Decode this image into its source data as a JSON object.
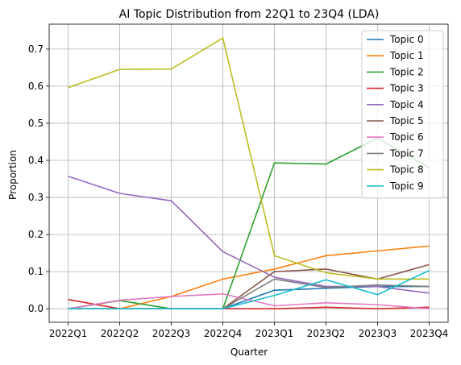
{
  "chart_data": {
    "type": "line",
    "title": "AI Topic Distribution from 22Q1 to 23Q4 (LDA)",
    "xlabel": "Quarter",
    "ylabel": "Proportion",
    "categories": [
      "2022Q1",
      "2022Q2",
      "2022Q3",
      "2022Q4",
      "2023Q1",
      "2023Q2",
      "2023Q3",
      "2023Q4"
    ],
    "ylim": [
      -0.0365,
      0.767
    ],
    "yticks": [
      "0.0",
      "0.1",
      "0.2",
      "0.3",
      "0.4",
      "0.5",
      "0.6",
      "0.7"
    ],
    "grid": true,
    "legend_position": "upper-right",
    "series": [
      {
        "name": "Topic 0",
        "color": "#1f77b4",
        "values": [
          0.0,
          0.0,
          0.0,
          0.0,
          0.05,
          0.055,
          0.06,
          0.06
        ]
      },
      {
        "name": "Topic 1",
        "color": "#ff7f0e",
        "values": [
          0.0,
          0.0,
          0.033,
          0.08,
          0.107,
          0.143,
          0.156,
          0.169
        ]
      },
      {
        "name": "Topic 2",
        "color": "#2ca02c",
        "values": [
          0.0,
          0.022,
          0.0,
          0.0,
          0.393,
          0.39,
          0.46,
          0.38
        ]
      },
      {
        "name": "Topic 3",
        "color": "#d62728",
        "values": [
          0.025,
          0.0,
          0.0,
          0.0,
          0.0,
          0.004,
          0.0,
          0.004
        ]
      },
      {
        "name": "Topic 4",
        "color": "#9467bd",
        "values": [
          0.357,
          0.311,
          0.291,
          0.154,
          0.085,
          0.06,
          0.06,
          0.042
        ]
      },
      {
        "name": "Topic 5",
        "color": "#8c564b",
        "values": [
          0.0,
          0.0,
          0.0,
          0.0,
          0.1,
          0.107,
          0.08,
          0.119
        ]
      },
      {
        "name": "Topic 6",
        "color": "#e377c2",
        "values": [
          0.0,
          0.023,
          0.033,
          0.04,
          0.008,
          0.016,
          0.011,
          0.0
        ]
      },
      {
        "name": "Topic 7",
        "color": "#7f7f7f",
        "values": [
          0.0,
          0.0,
          0.0,
          0.0,
          0.08,
          0.057,
          0.064,
          0.06
        ]
      },
      {
        "name": "Topic 8",
        "color": "#bcbd22",
        "values": [
          0.596,
          0.645,
          0.646,
          0.73,
          0.143,
          0.097,
          0.08,
          0.08
        ]
      },
      {
        "name": "Topic 9",
        "color": "#17becf",
        "values": [
          0.0,
          0.0,
          0.0,
          0.0,
          0.036,
          0.078,
          0.038,
          0.103
        ]
      }
    ]
  }
}
